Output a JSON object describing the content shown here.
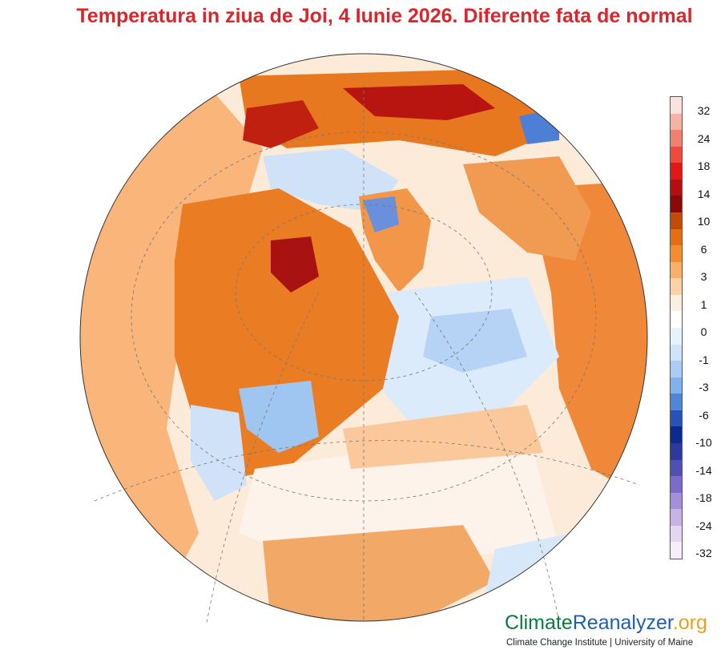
{
  "map": {
    "title": "Temperatura in ziua de Joi, 4 Iunie 2026. Diferente fata de normal",
    "projection": "orthographic",
    "legend": {
      "labels": [
        "32",
        "24",
        "18",
        "14",
        "10",
        "6",
        "3",
        "1",
        "0",
        "-1",
        "-3",
        "-6",
        "-10",
        "-14",
        "-18",
        "-24",
        "-32"
      ],
      "colors": [
        "#fbe3dc",
        "#f6b3a4",
        "#f0806f",
        "#ef4a3c",
        "#e01818",
        "#b50e0e",
        "#8a0a0a",
        "#c24c05",
        "#e56d12",
        "#f58c2e",
        "#fbb068",
        "#fdd3a6",
        "#feeee0",
        "#ffffff",
        "#e8f2fd",
        "#cfe3fa",
        "#a9cdf5",
        "#7fb2ee",
        "#4f86d8",
        "#2653b8",
        "#0d2b8f",
        "#2d3a9d",
        "#5050b4",
        "#7a6cc8",
        "#a490da",
        "#c6b4e6",
        "#e3d6f1",
        "#f6eefa"
      ]
    },
    "brand": {
      "part1": "Climate",
      "part2": "Reanalyzer",
      "part3": ".org",
      "subtitle": "Climate Change Institute | University of Maine"
    }
  }
}
